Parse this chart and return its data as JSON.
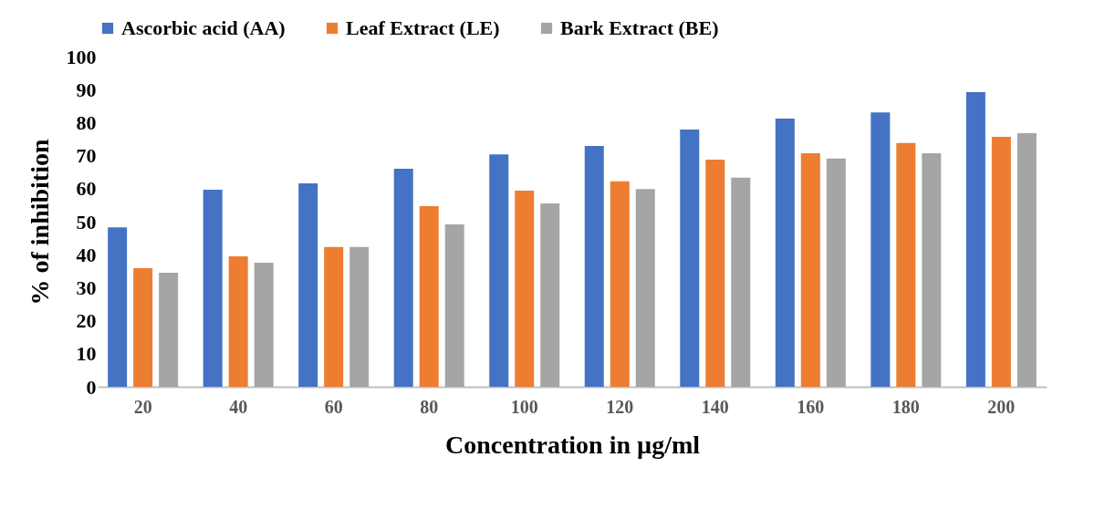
{
  "chart_data": {
    "type": "bar",
    "xlabel": "Concentration in µg/ml",
    "ylabel": "% of inhibition",
    "categories": [
      "20",
      "40",
      "60",
      "80",
      "100",
      "120",
      "140",
      "160",
      "180",
      "200"
    ],
    "series": [
      {
        "name": "Ascorbic acid (AA)",
        "color": "#4472c4",
        "values": [
          48.3,
          59.7,
          61.6,
          66,
          70.4,
          72.9,
          77.9,
          81.2,
          83.1,
          89.2
        ]
      },
      {
        "name": "Leaf Extract (LE)",
        "color": "#ed7d31",
        "values": [
          35.9,
          39.5,
          42.3,
          54.7,
          59.4,
          62.2,
          68.8,
          70.7,
          73.8,
          75.7
        ]
      },
      {
        "name": "Bark Extract (BE)",
        "color": "#a5a5a5",
        "values": [
          34.5,
          37.6,
          42.3,
          49.2,
          55.5,
          59.9,
          63.3,
          69.1,
          70.7,
          76.8
        ]
      }
    ],
    "ylim": [
      0,
      100
    ],
    "yticks": [
      0,
      10,
      20,
      30,
      40,
      50,
      60,
      70,
      80,
      90,
      100
    ],
    "grid": false,
    "legend": "top"
  }
}
